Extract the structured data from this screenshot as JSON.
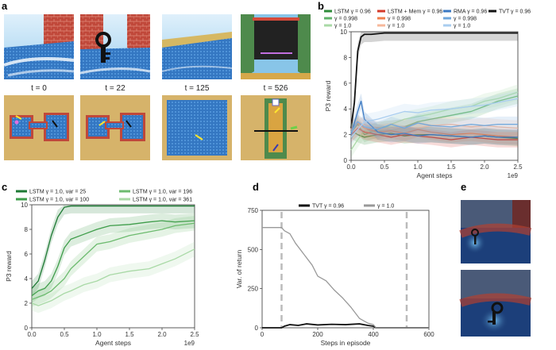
{
  "panel_letters": {
    "a": "a",
    "b": "b",
    "c": "c",
    "d": "d",
    "e": "e"
  },
  "panel_a": {
    "frames": [
      {
        "label": "t = 0"
      },
      {
        "label": "t = 22"
      },
      {
        "label": "t = 125"
      },
      {
        "label": "t = 526"
      }
    ]
  },
  "colors": {
    "lstm": "#2e8b3a",
    "lstm_mid": "#5fb26a",
    "lstm_light": "#a9d9a6",
    "mem": "#d43a2a",
    "mem_mid": "#f07f4d",
    "mem_light": "#f7b89b",
    "rma": "#3a78c2",
    "rma_mid": "#6fa7dc",
    "rma_light": "#a9cdef",
    "tvt": "#111111",
    "gray": "#999999"
  },
  "chart_data": [
    {
      "id": "b",
      "type": "line",
      "xlabel": "Agent steps",
      "ylabel": "P3 reward",
      "xlim": [
        0,
        2.5
      ],
      "ylim": [
        0,
        10
      ],
      "xticks": [
        "0.0",
        "0.5",
        "1.0",
        "1.5",
        "2.0",
        "2.5"
      ],
      "yticks": [
        "0",
        "2",
        "4",
        "6",
        "8",
        "10"
      ],
      "x_multiplier": "1e9",
      "legend": [
        {
          "text": "LSTM γ = 0.96",
          "color": "#2e8b3a"
        },
        {
          "text": "LSTM + Mem γ = 0.96",
          "color": "#d43a2a"
        },
        {
          "text": "RMA γ = 0.96",
          "color": "#3a78c2"
        },
        {
          "text": "TVT γ = 0.96",
          "color": "#111111"
        },
        {
          "text": "γ = 0.998",
          "color": "#5fb26a"
        },
        {
          "text": "γ = 0.998",
          "color": "#f07f4d"
        },
        {
          "text": "γ = 0.998",
          "color": "#6fa7dc"
        },
        {
          "text": "γ = 1.0",
          "color": "#a9d9a6"
        },
        {
          "text": "γ = 1.0",
          "color": "#f7b89b"
        },
        {
          "text": "γ = 1.0",
          "color": "#a9cdef"
        }
      ],
      "series": [
        {
          "name": "TVT γ = 0.96",
          "color": "#111111",
          "x": [
            0,
            0.05,
            0.1,
            0.15,
            0.2,
            0.3,
            0.5,
            1.0,
            1.5,
            2.0,
            2.5
          ],
          "y": [
            2.5,
            4.5,
            8.5,
            9.6,
            9.8,
            9.8,
            9.9,
            9.9,
            9.9,
            9.9,
            9.9
          ]
        },
        {
          "name": "LSTM γ = 0.96",
          "color": "#2e8b3a",
          "x": [
            0,
            0.1,
            0.2,
            0.4,
            0.6,
            0.8,
            1.0,
            1.2,
            1.5,
            1.8,
            2.0,
            2.2,
            2.5
          ],
          "y": [
            2.3,
            2.0,
            1.8,
            2.0,
            2.1,
            1.9,
            2.0,
            2.0,
            1.9,
            1.8,
            1.9,
            1.8,
            1.7
          ]
        },
        {
          "name": "LSTM γ = 0.998",
          "color": "#5fb26a",
          "x": [
            0,
            0.1,
            0.2,
            0.4,
            0.6,
            0.8,
            1.0,
            1.2,
            1.5,
            1.8,
            2.0,
            2.2,
            2.5
          ],
          "y": [
            2.2,
            2.8,
            2.0,
            2.4,
            2.5,
            2.6,
            3.0,
            3.2,
            3.5,
            3.8,
            4.2,
            4.6,
            5.0
          ]
        },
        {
          "name": "LSTM γ = 1.0",
          "color": "#a9d9a6",
          "x": [
            0,
            0.1,
            0.2,
            0.4,
            0.6,
            0.8,
            1.0,
            1.2,
            1.5,
            1.8,
            2.0,
            2.2,
            2.5
          ],
          "y": [
            0.8,
            1.6,
            2.3,
            2.2,
            2.8,
            3.2,
            3.4,
            3.6,
            4.0,
            4.2,
            4.6,
            4.8,
            5.3
          ]
        },
        {
          "name": "LSTM + Mem γ = 0.96",
          "color": "#d43a2a",
          "x": [
            0,
            0.1,
            0.2,
            0.4,
            0.6,
            0.8,
            1.0,
            1.2,
            1.5,
            1.8,
            2.0,
            2.2,
            2.5
          ],
          "y": [
            2.0,
            2.5,
            2.2,
            2.0,
            1.8,
            2.0,
            1.9,
            1.8,
            1.6,
            1.8,
            1.7,
            1.6,
            1.6
          ]
        },
        {
          "name": "LSTM + Mem γ = 0.998",
          "color": "#f07f4d",
          "x": [
            0,
            0.1,
            0.2,
            0.4,
            0.6,
            0.8,
            1.0,
            1.2,
            1.5,
            1.8,
            2.0,
            2.2,
            2.5
          ],
          "y": [
            2.4,
            2.9,
            2.5,
            2.2,
            2.3,
            2.1,
            2.4,
            2.2,
            2.0,
            2.1,
            2.0,
            1.9,
            1.8
          ]
        },
        {
          "name": "LSTM + Mem γ = 1.0",
          "color": "#f7b89b",
          "x": [
            0,
            0.1,
            0.2,
            0.4,
            0.6,
            0.8,
            1.0,
            1.2,
            1.5,
            1.8,
            2.0,
            2.2,
            2.5
          ],
          "y": [
            2.1,
            2.6,
            2.8,
            2.4,
            2.5,
            2.6,
            2.5,
            2.7,
            2.8,
            2.6,
            2.7,
            2.6,
            2.5
          ]
        },
        {
          "name": "RMA γ = 0.96",
          "color": "#3a78c2",
          "x": [
            0,
            0.1,
            0.15,
            0.2,
            0.4,
            0.6,
            0.8,
            1.0,
            1.2,
            1.5,
            1.8,
            2.0,
            2.2,
            2.5
          ],
          "y": [
            2.0,
            3.8,
            4.6,
            3.2,
            2.2,
            2.0,
            2.1,
            1.9,
            2.0,
            1.9,
            1.8,
            1.9,
            1.8,
            1.8
          ]
        },
        {
          "name": "RMA γ = 0.998",
          "color": "#6fa7dc",
          "x": [
            0,
            0.1,
            0.2,
            0.4,
            0.6,
            0.8,
            1.0,
            1.2,
            1.5,
            1.8,
            2.0,
            2.2,
            2.5
          ],
          "y": [
            2.2,
            3.0,
            2.6,
            2.4,
            2.8,
            2.5,
            2.9,
            2.7,
            2.6,
            2.8,
            2.7,
            2.8,
            2.8
          ]
        },
        {
          "name": "RMA γ = 1.0",
          "color": "#a9cdef",
          "x": [
            0,
            0.1,
            0.2,
            0.4,
            0.6,
            0.8,
            1.0,
            1.2,
            1.5,
            1.8,
            2.0,
            2.2,
            2.5
          ],
          "y": [
            1.8,
            2.4,
            3.0,
            3.2,
            3.5,
            3.8,
            3.7,
            3.9,
            4.0,
            4.2,
            4.3,
            4.5,
            4.8
          ]
        }
      ]
    },
    {
      "id": "c",
      "type": "line",
      "xlabel": "Agent steps",
      "ylabel": "P3 reward",
      "xlim": [
        0,
        2.5
      ],
      "ylim": [
        0,
        10
      ],
      "xticks": [
        "0.0",
        "0.5",
        "1.0",
        "1.5",
        "2.0",
        "2.5"
      ],
      "yticks": [
        "0",
        "2",
        "4",
        "6",
        "8",
        "10"
      ],
      "x_multiplier": "1e9",
      "legend": [
        {
          "text": "LSTM γ = 1.0, var = 25",
          "color": "#1e7a34"
        },
        {
          "text": "LSTM γ = 1.0, var = 196",
          "color": "#6dbb6f"
        },
        {
          "text": "LSTM γ = 1.0, var = 100",
          "color": "#3e9d4a"
        },
        {
          "text": "LSTM γ = 1.0, var = 361",
          "color": "#a9d9a6"
        }
      ],
      "series": [
        {
          "name": "LSTM γ = 1.0, var = 25",
          "color": "#1e7a34",
          "x": [
            0,
            0.1,
            0.2,
            0.3,
            0.4,
            0.5,
            0.6,
            0.8,
            1.0,
            1.5,
            2.0,
            2.5
          ],
          "y": [
            3.2,
            3.8,
            5.5,
            7.5,
            9.0,
            9.8,
            9.9,
            9.9,
            9.9,
            9.9,
            9.9,
            9.9
          ]
        },
        {
          "name": "LSTM γ = 1.0, var = 100",
          "color": "#3e9d4a",
          "x": [
            0,
            0.1,
            0.2,
            0.3,
            0.4,
            0.5,
            0.6,
            0.8,
            1.0,
            1.2,
            1.5,
            1.8,
            2.0,
            2.2,
            2.5
          ],
          "y": [
            2.6,
            3.0,
            3.2,
            3.8,
            5.0,
            6.5,
            7.2,
            7.6,
            8.0,
            8.3,
            8.4,
            8.6,
            8.7,
            8.6,
            8.7
          ]
        },
        {
          "name": "LSTM γ = 1.0, var = 196",
          "color": "#6dbb6f",
          "x": [
            0,
            0.1,
            0.2,
            0.3,
            0.4,
            0.5,
            0.6,
            0.8,
            1.0,
            1.2,
            1.5,
            1.8,
            2.0,
            2.2,
            2.5
          ],
          "y": [
            2.3,
            2.5,
            2.7,
            3.0,
            3.5,
            4.0,
            4.8,
            5.8,
            6.8,
            7.0,
            7.5,
            7.8,
            8.0,
            8.3,
            8.5
          ]
        },
        {
          "name": "LSTM γ = 1.0, var = 361",
          "color": "#a9d9a6",
          "x": [
            0,
            0.1,
            0.2,
            0.3,
            0.4,
            0.5,
            0.6,
            0.8,
            1.0,
            1.2,
            1.5,
            1.8,
            2.0,
            2.2,
            2.5
          ],
          "y": [
            2.0,
            1.8,
            2.0,
            2.2,
            2.5,
            2.8,
            3.0,
            3.5,
            3.8,
            4.3,
            4.6,
            4.8,
            5.2,
            5.6,
            6.4
          ]
        }
      ]
    },
    {
      "id": "d",
      "type": "line",
      "xlabel": "Steps in episode",
      "ylabel": "Var. of return",
      "xlim": [
        0,
        600
      ],
      "ylim": [
        0,
        750
      ],
      "xticks": [
        "0",
        "200",
        "400",
        "600"
      ],
      "yticks": [
        "0",
        "250",
        "500",
        "750"
      ],
      "legend": [
        {
          "text": "TVT γ = 0.96",
          "color": "#111111"
        },
        {
          "text": "γ = 1.0",
          "color": "#999999"
        }
      ],
      "vlines": [
        70,
        520
      ],
      "series": [
        {
          "name": "TVT γ = 0.96",
          "color": "#111111",
          "x": [
            0,
            60,
            70,
            80,
            100,
            130,
            160,
            200,
            250,
            300,
            350,
            380,
            400,
            410,
            600
          ],
          "y": [
            0,
            0,
            0,
            10,
            20,
            15,
            25,
            18,
            22,
            20,
            25,
            15,
            10,
            0,
            0
          ]
        },
        {
          "name": "γ = 1.0",
          "color": "#999999",
          "x": [
            0,
            60,
            70,
            80,
            100,
            120,
            150,
            180,
            200,
            230,
            260,
            290,
            320,
            350,
            380,
            400,
            410,
            600
          ],
          "y": [
            640,
            640,
            640,
            620,
            600,
            540,
            470,
            400,
            330,
            300,
            240,
            190,
            130,
            60,
            30,
            20,
            0,
            0
          ]
        }
      ]
    }
  ]
}
